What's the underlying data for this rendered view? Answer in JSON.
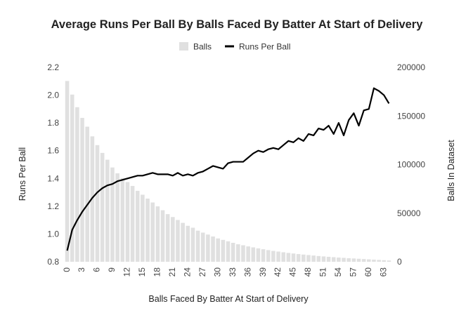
{
  "chart_data": {
    "type": "bar+line",
    "title": "Average Runs Per Ball By Balls Faced By Batter At Start of Delivery",
    "xlabel": "Balls Faced By Batter At Start of Delivery",
    "ylabel_left": "Runs Per Ball",
    "ylabel_right": "Balls In Dataset",
    "ylim_left": [
      0.8,
      2.2
    ],
    "ylim_right": [
      0,
      200000
    ],
    "yticks_left": [
      "0.8",
      "1.0",
      "1.2",
      "1.4",
      "1.6",
      "1.8",
      "2.0",
      "2.2"
    ],
    "yticks_right": [
      "0",
      "50000",
      "100000",
      "150000",
      "200000"
    ],
    "xtick_labels": [
      "0",
      "3",
      "6",
      "9",
      "12",
      "15",
      "18",
      "21",
      "24",
      "27",
      "30",
      "33",
      "36",
      "39",
      "42",
      "45",
      "48",
      "51",
      "54",
      "57",
      "60",
      "63"
    ],
    "legend_position": "top",
    "grid": false,
    "x": [
      0,
      1,
      2,
      3,
      4,
      5,
      6,
      7,
      8,
      9,
      10,
      11,
      12,
      13,
      14,
      15,
      16,
      17,
      18,
      19,
      20,
      21,
      22,
      23,
      24,
      25,
      26,
      27,
      28,
      29,
      30,
      31,
      32,
      33,
      34,
      35,
      36,
      37,
      38,
      39,
      40,
      41,
      42,
      43,
      44,
      45,
      46,
      47,
      48,
      49,
      50,
      51,
      52,
      53,
      54,
      55,
      56,
      57,
      58,
      59,
      60,
      61,
      62,
      63,
      64
    ],
    "series": [
      {
        "name": "Balls",
        "type": "bar",
        "axis": "right",
        "color": "#e0e0e0",
        "values": [
          186000,
          172000,
          159000,
          148000,
          139000,
          129000,
          120000,
          112000,
          105000,
          97000,
          91000,
          86000,
          82000,
          78000,
          73000,
          69000,
          65000,
          61000,
          57000,
          53000,
          49000,
          46000,
          43000,
          40000,
          37000,
          35000,
          32000,
          30000,
          28000,
          26000,
          24000,
          22500,
          21000,
          19500,
          18000,
          17000,
          15800,
          14800,
          13800,
          12900,
          12000,
          11200,
          10500,
          9800,
          9100,
          8500,
          7900,
          7400,
          6900,
          6400,
          5900,
          5500,
          5100,
          4700,
          4300,
          4000,
          3700,
          3400,
          3100,
          2800,
          2500,
          2200,
          1900,
          1600,
          1300
        ]
      },
      {
        "name": "Runs Per Ball",
        "type": "line",
        "axis": "left",
        "color": "#000000",
        "values": [
          0.88,
          1.03,
          1.1,
          1.16,
          1.21,
          1.26,
          1.3,
          1.33,
          1.35,
          1.36,
          1.38,
          1.39,
          1.4,
          1.41,
          1.42,
          1.42,
          1.43,
          1.44,
          1.43,
          1.43,
          1.43,
          1.42,
          1.44,
          1.42,
          1.43,
          1.42,
          1.44,
          1.45,
          1.47,
          1.49,
          1.48,
          1.47,
          1.51,
          1.52,
          1.52,
          1.52,
          1.55,
          1.58,
          1.6,
          1.59,
          1.61,
          1.62,
          1.61,
          1.64,
          1.67,
          1.66,
          1.69,
          1.67,
          1.72,
          1.71,
          1.76,
          1.75,
          1.78,
          1.72,
          1.8,
          1.71,
          1.82,
          1.87,
          1.78,
          1.89,
          1.9,
          2.05,
          2.03,
          2.0,
          1.94
        ]
      }
    ]
  }
}
